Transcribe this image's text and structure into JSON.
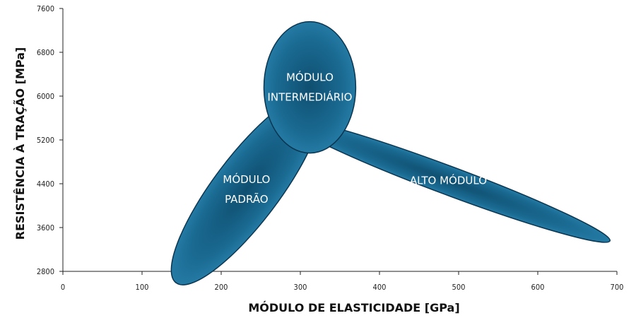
{
  "chart_data": {
    "type": "scatter",
    "title": "",
    "xlabel": "MÓDULO DE ELASTICIDADE [GPa]",
    "ylabel": "RESISTÊNCIA À TRAÇÃO [MPa]",
    "xlim": [
      0,
      700
    ],
    "ylim": [
      2800,
      7600
    ],
    "xticks": [
      0,
      100,
      200,
      300,
      400,
      500,
      600,
      700
    ],
    "yticks": [
      2800,
      3600,
      4400,
      5200,
      6000,
      6800,
      7600
    ],
    "grid": false,
    "colors": {
      "fill_light": "#2a7fa6",
      "fill_dark": "#0d4a6b",
      "stroke": "#0a3550"
    },
    "regions": [
      {
        "label_lines": [
          "MÓDULO",
          "PADRÃO"
        ],
        "center": [
          232,
          4300
        ],
        "radius_x": 148,
        "radius_y": 600,
        "angle": -53
      },
      {
        "label_lines": [
          "ALTO MÓDULO"
        ],
        "center": [
          487,
          4460
        ],
        "radius_x": 218,
        "radius_y": 260,
        "angle": 20.5
      },
      {
        "label_lines": [
          "MÓDULO",
          "INTERMEDIÁRIO"
        ],
        "center": [
          312,
          6160
        ],
        "radius_x": 58,
        "radius_y": 1200,
        "angle": 0
      }
    ]
  }
}
